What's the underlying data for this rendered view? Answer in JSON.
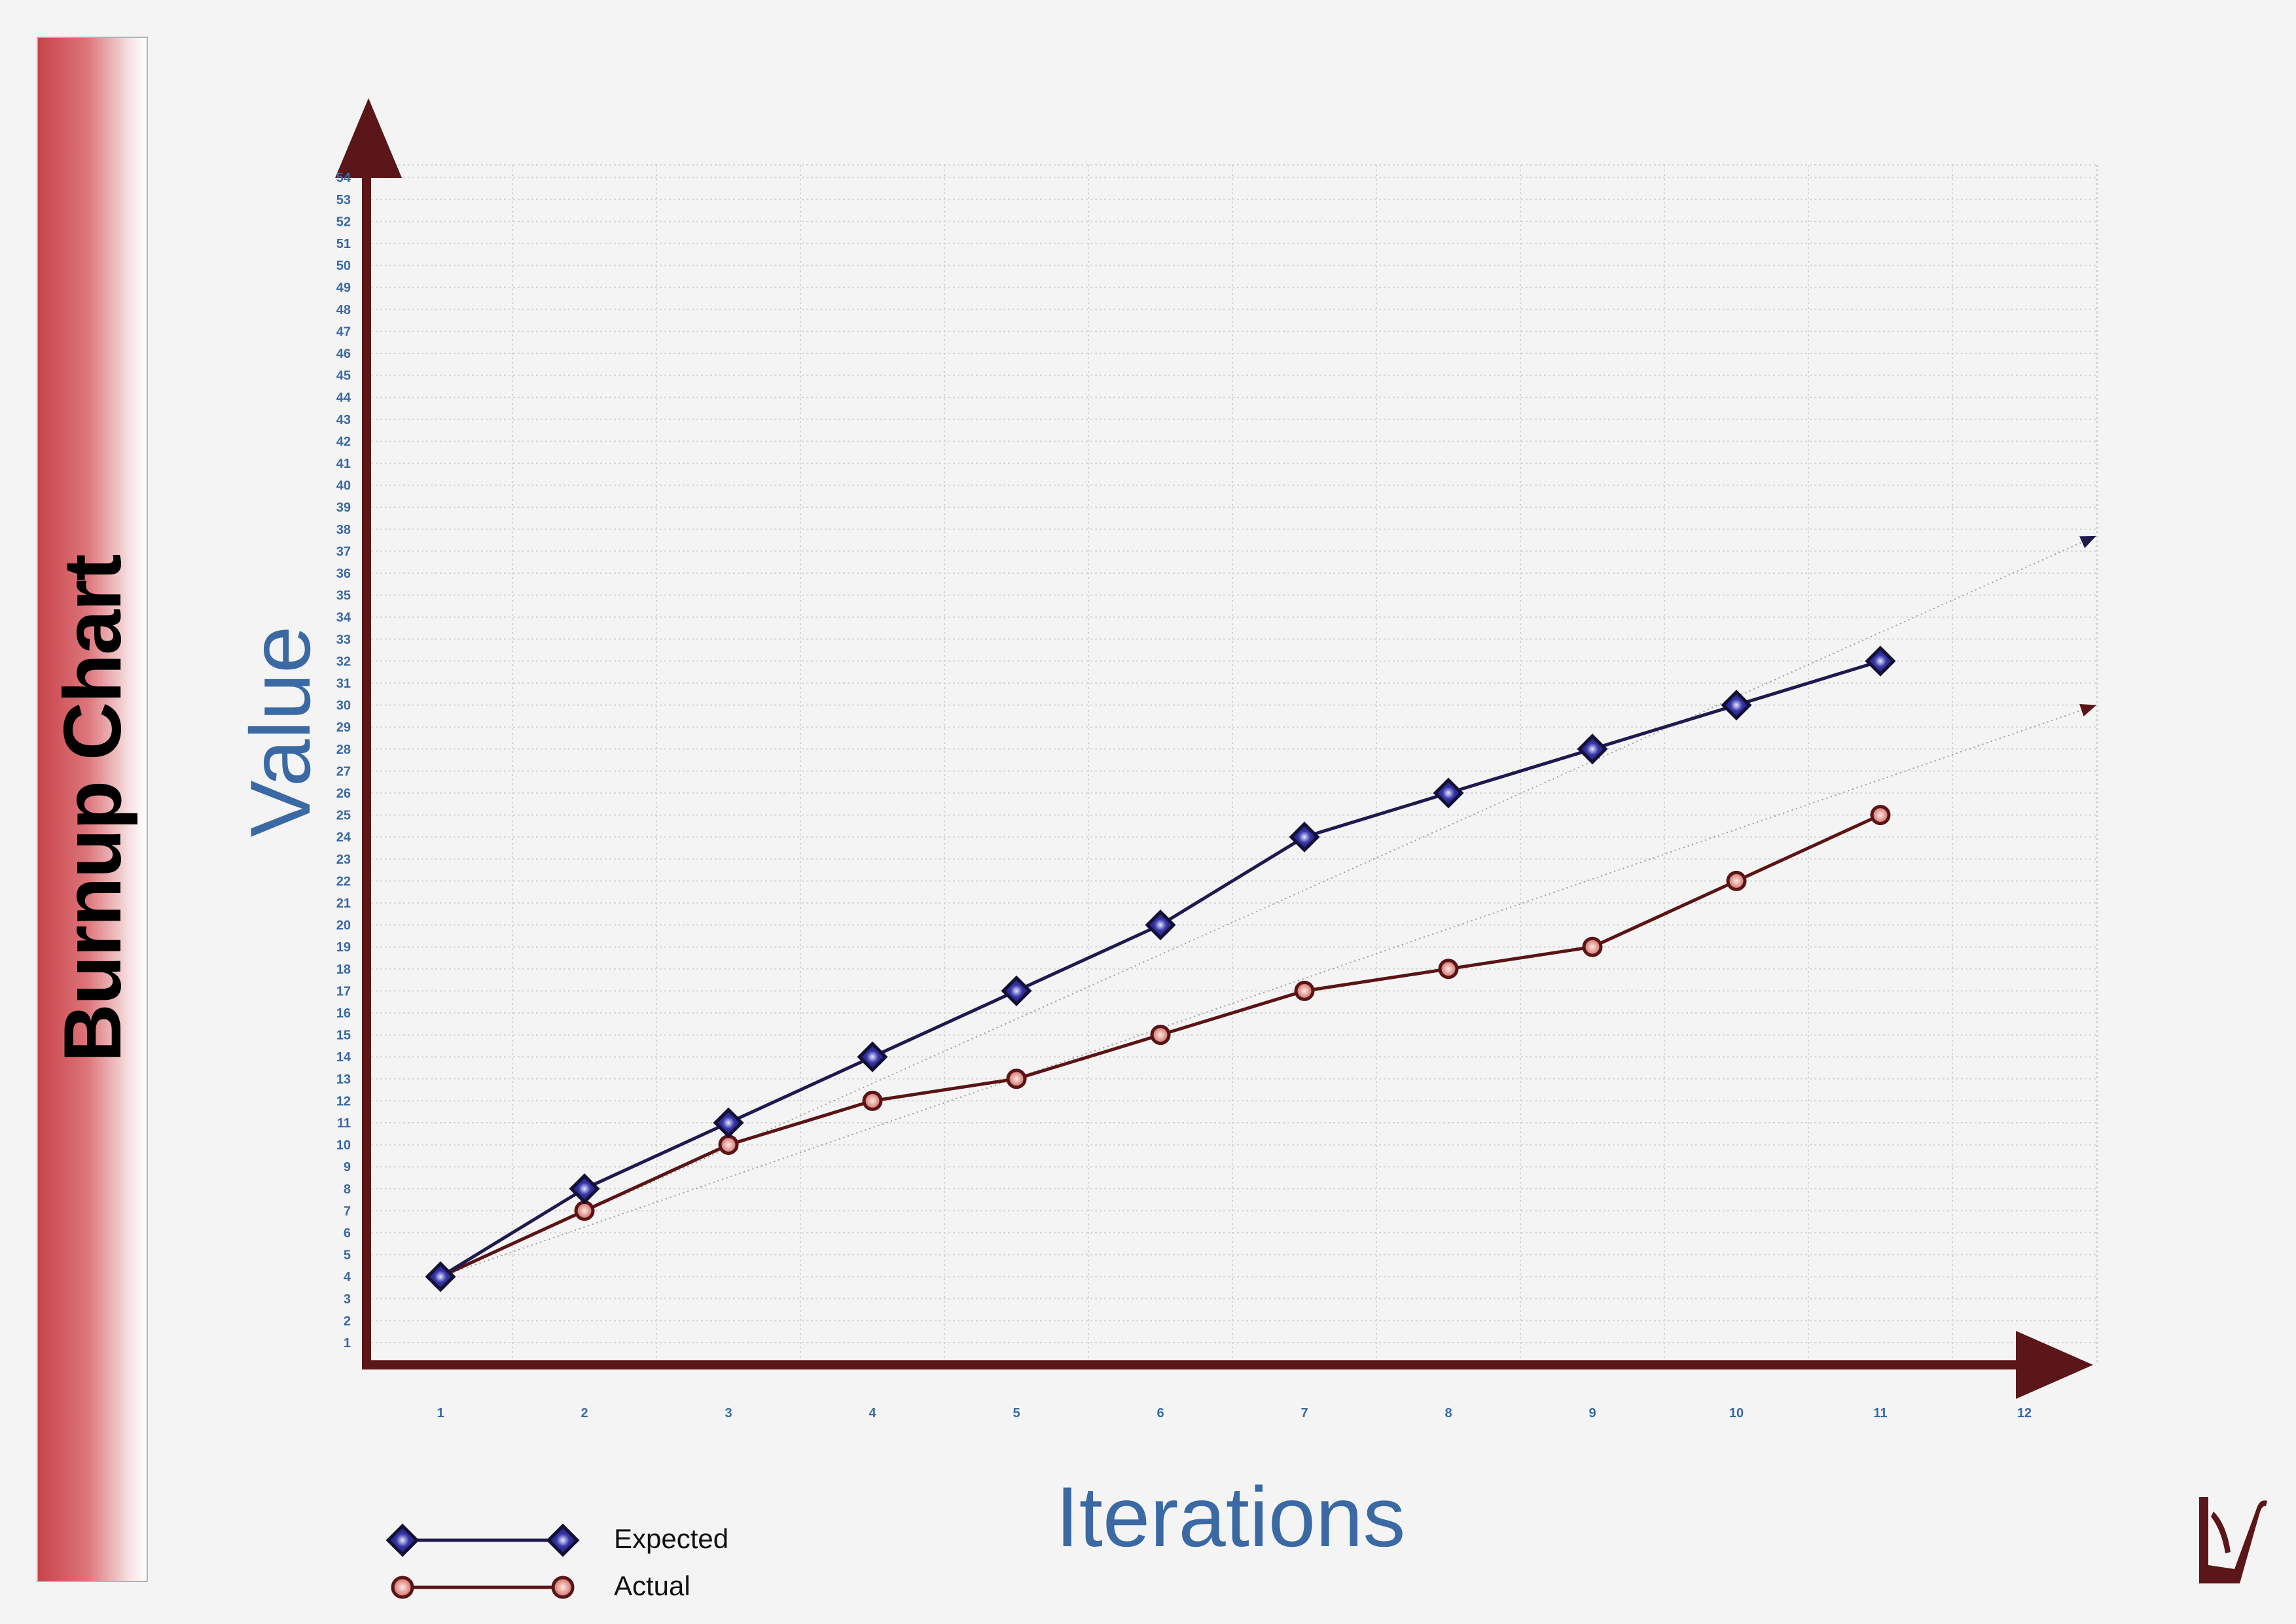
{
  "chart_data": {
    "type": "line",
    "title": "Burnup Chart",
    "xlabel": "Iterations",
    "ylabel": "Value",
    "x": [
      1,
      2,
      3,
      4,
      5,
      6,
      7,
      8,
      9,
      10,
      11
    ],
    "xticks": [
      1,
      2,
      3,
      4,
      5,
      6,
      7,
      8,
      9,
      10,
      11,
      12
    ],
    "yticks": [
      1,
      2,
      3,
      4,
      5,
      6,
      7,
      8,
      9,
      10,
      11,
      12,
      13,
      14,
      15,
      16,
      17,
      18,
      19,
      20,
      21,
      22,
      23,
      24,
      25,
      26,
      27,
      28,
      29,
      30,
      31,
      32,
      33,
      34,
      35,
      36,
      37,
      38,
      39,
      40,
      41,
      42,
      43,
      44,
      45,
      46,
      47,
      48,
      49,
      50,
      51,
      52,
      53,
      54
    ],
    "xlim": [
      0.5,
      12.5
    ],
    "ylim": [
      0,
      55
    ],
    "grid": true,
    "legend_position": "bottom-left",
    "series": [
      {
        "name": "Expected",
        "values": [
          4,
          8,
          11,
          14,
          17,
          20,
          24,
          26,
          28,
          30,
          32
        ],
        "color": "#1e1a4e",
        "marker_color": "#3535a8",
        "marker": "diamond"
      },
      {
        "name": "Actual",
        "values": [
          4,
          7,
          10,
          12,
          13,
          15,
          17,
          18,
          19,
          22,
          25
        ],
        "color": "#5a1416",
        "marker_color": "#e29a93",
        "marker": "circle"
      }
    ],
    "trendlines": [
      {
        "series": "Expected",
        "from": [
          1,
          4
        ],
        "to": [
          12.5,
          37.7
        ],
        "color": "#1e1a4e"
      },
      {
        "series": "Actual",
        "from": [
          1,
          4
        ],
        "to": [
          12.5,
          30
        ],
        "color": "#5a1416"
      }
    ]
  },
  "colors": {
    "axis": "#5a1618",
    "tick_label": "#3a69a3",
    "axis_label": "#3a69a3",
    "grid": "#d6d6d6",
    "sidebar_dark": "#c8434a",
    "sidebar_light": "#ffffff",
    "logo": "#5a1618"
  },
  "logo_icon": "stylized-v-logo"
}
